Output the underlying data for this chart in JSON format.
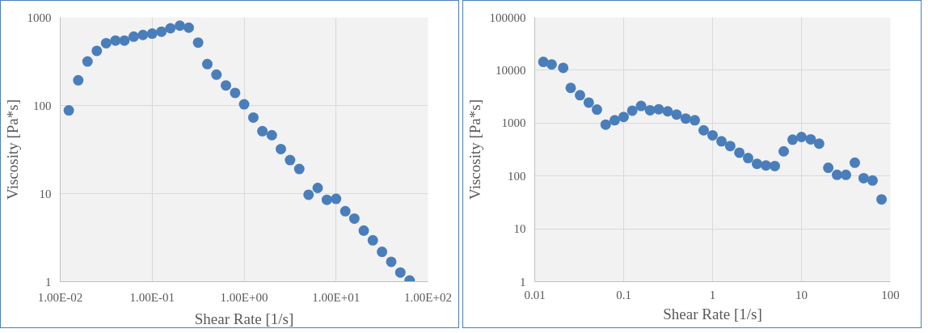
{
  "chart_data": [
    {
      "type": "scatter",
      "xlabel": "Shear Rate [1/s]",
      "ylabel": "Viscosity [Pa*s]",
      "log": "xy",
      "grid": true,
      "marker": "circle",
      "xlim": [
        0.01,
        100
      ],
      "ylim": [
        1,
        1000
      ],
      "xticks": [
        {
          "value": 0.01,
          "label": "1.00E-02"
        },
        {
          "value": 0.1,
          "label": "1.00E-01"
        },
        {
          "value": 1,
          "label": "1.00E+00"
        },
        {
          "value": 10,
          "label": "1.00E+01"
        },
        {
          "value": 100,
          "label": "1.00E+02"
        }
      ],
      "yticks": [
        1,
        10,
        100,
        1000
      ],
      "series": [
        {
          "color": "#4a7ebb",
          "x": [
            0.0124,
            0.0157,
            0.0198,
            0.025,
            0.0316,
            0.0399,
            0.0499,
            0.063,
            0.0793,
            0.1,
            0.126,
            0.158,
            0.2,
            0.25,
            0.316,
            0.398,
            0.5,
            0.634,
            0.798,
            1.0,
            1.26,
            1.58,
            2.0,
            2.51,
            3.16,
            3.98,
            5.02,
            6.31,
            7.94,
            10,
            12.6,
            15.8,
            20,
            25.1,
            31.6,
            39.8,
            50,
            63.1
          ],
          "values": [
            88,
            193,
            316,
            417,
            509,
            546,
            546,
            605,
            632,
            654,
            689,
            752,
            805,
            764,
            518,
            295,
            224,
            169,
            139,
            103,
            73,
            51,
            46,
            32,
            24,
            19,
            9.7,
            11.6,
            8.5,
            8.7,
            6.3,
            5.2,
            3.8,
            2.95,
            2.18,
            1.68,
            1.27,
            1.03
          ]
        }
      ]
    },
    {
      "type": "scatter",
      "xlabel": "Shear Rate [1/s]",
      "ylabel": "Viscosity [Pa*s]",
      "log": "xy",
      "grid": true,
      "marker": "circle",
      "xlim": [
        0.01,
        100
      ],
      "ylim": [
        1,
        100000
      ],
      "xticks": [
        0.01,
        0.1,
        1,
        10,
        100
      ],
      "yticks": [
        1,
        10,
        100,
        1000,
        10000,
        100000
      ],
      "series": [
        {
          "color": "#4a7ebb",
          "x": [
            0.0125,
            0.0155,
            0.0209,
            0.0254,
            0.0323,
            0.0405,
            0.0501,
            0.0628,
            0.0793,
            0.1,
            0.125,
            0.157,
            0.198,
            0.248,
            0.313,
            0.394,
            0.499,
            0.631,
            0.794,
            1,
            1.26,
            1.58,
            2.0,
            2.51,
            3.16,
            3.98,
            5.01,
            6.31,
            7.94,
            10,
            12.7,
            15.8,
            20,
            25.1,
            31.6,
            39.8,
            50,
            63,
            79.5
          ],
          "values": [
            14400,
            12900,
            11100,
            4630,
            3370,
            2440,
            1800,
            935,
            1130,
            1310,
            1720,
            2110,
            1750,
            1830,
            1670,
            1450,
            1220,
            1130,
            730,
            588,
            452,
            368,
            275,
            218,
            170,
            158,
            154,
            292,
            485,
            546,
            493,
            408,
            143,
            105,
            105,
            178,
            91,
            82,
            36
          ]
        }
      ]
    }
  ]
}
